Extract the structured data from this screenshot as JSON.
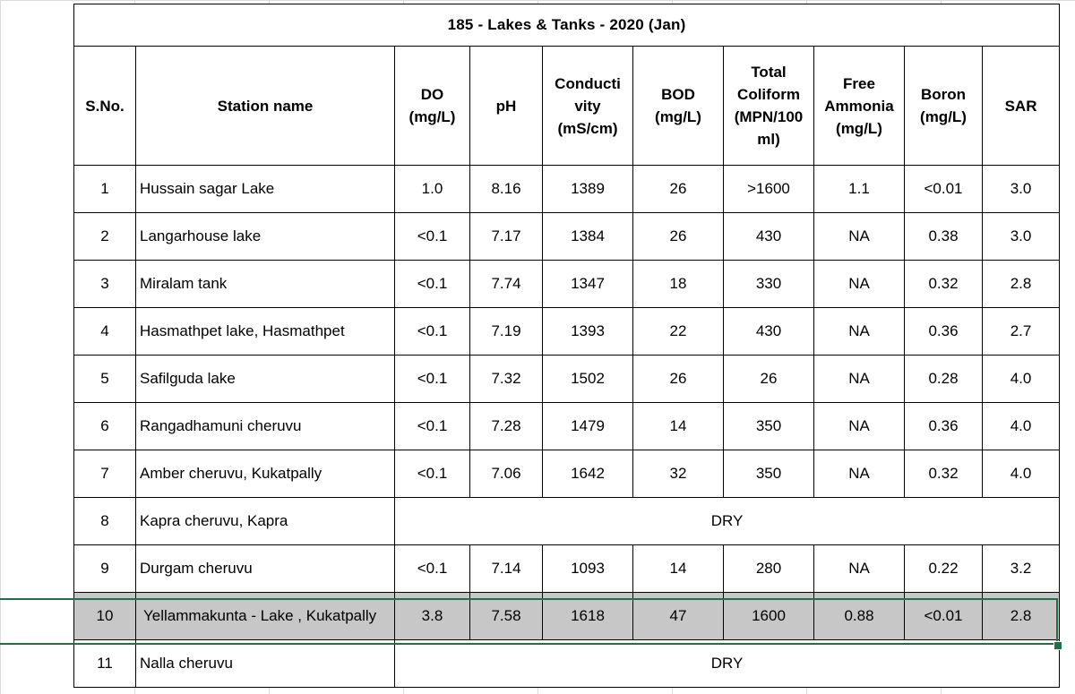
{
  "title": "185 - Lakes & Tanks - 2020 (Jan)",
  "headers": {
    "sno": "S.No.",
    "station": "Station name",
    "do_l1": "DO",
    "do_l2": "(mg/L)",
    "ph": "pH",
    "cond_l1": "Conducti",
    "cond_l2": "vity",
    "cond_l3": "(mS/cm)",
    "bod_l1": "BOD",
    "bod_l2": "(mg/L)",
    "tc_l1": "Total",
    "tc_l2": "Coliform",
    "tc_l3": "(MPN/100",
    "tc_l4": "ml)",
    "fa_l1": "Free",
    "fa_l2": "Ammonia",
    "fa_l3": "(mg/L)",
    "boron_l1": "Boron",
    "boron_l2": "(mg/L)",
    "sar": "SAR"
  },
  "rows": [
    {
      "sno": "1",
      "name": "Hussain sagar Lake",
      "do": "1.0",
      "ph": "8.16",
      "cond": "1389",
      "bod": "26",
      "tc": ">1600",
      "fa": "1.1",
      "boron": "<0.01",
      "sar": "3.0"
    },
    {
      "sno": "2",
      "name": "Langarhouse lake",
      "do": "<0.1",
      "ph": "7.17",
      "cond": "1384",
      "bod": "26",
      "tc": "430",
      "fa": "NA",
      "boron": "0.38",
      "sar": "3.0"
    },
    {
      "sno": "3",
      "name": "Miralam tank",
      "do": "<0.1",
      "ph": "7.74",
      "cond": "1347",
      "bod": "18",
      "tc": "330",
      "fa": "NA",
      "boron": "0.32",
      "sar": "2.8"
    },
    {
      "sno": "4",
      "name": "Hasmathpet lake, Hasmathpet",
      "do": "<0.1",
      "ph": "7.19",
      "cond": "1393",
      "bod": "22",
      "tc": "430",
      "fa": "NA",
      "boron": "0.36",
      "sar": "2.7"
    },
    {
      "sno": "5",
      "name": "Safilguda lake",
      "do": "<0.1",
      "ph": "7.32",
      "cond": "1502",
      "bod": "26",
      "tc": "26",
      "fa": "NA",
      "boron": "0.28",
      "sar": "4.0"
    },
    {
      "sno": "6",
      "name": "Rangadhamuni cheruvu",
      "do": "<0.1",
      "ph": "7.28",
      "cond": "1479",
      "bod": "14",
      "tc": "350",
      "fa": "NA",
      "boron": "0.36",
      "sar": "4.0"
    },
    {
      "sno": "7",
      "name": "Amber cheruvu, Kukatpally",
      "do": "<0.1",
      "ph": "7.06",
      "cond": "1642",
      "bod": "32",
      "tc": "350",
      "fa": "NA",
      "boron": "0.32",
      "sar": "4.0"
    },
    {
      "sno": "8",
      "name": "Kapra cheruvu, Kapra",
      "dry": "DRY"
    },
    {
      "sno": "9",
      "name": "Durgam cheruvu",
      "do": "<0.1",
      "ph": "7.14",
      "cond": "1093",
      "bod": "14",
      "tc": "280",
      "fa": "NA",
      "boron": "0.22",
      "sar": "3.2"
    },
    {
      "sno": "10",
      "name": "Yellammakunta - Lake , Kukatpally",
      "do": "3.8",
      "ph": "7.58",
      "cond": "1618",
      "bod": "47",
      "tc": "1600",
      "fa": "0.88",
      "boron": "<0.01",
      "sar": "2.8"
    },
    {
      "sno": "11",
      "name": "Nalla cheruvu",
      "dry": "DRY"
    }
  ],
  "selected_row": "10",
  "colors": {
    "highlight_row": "#c7c7c7",
    "selection_border": "#1e7145",
    "gridline": "#dadce0"
  }
}
